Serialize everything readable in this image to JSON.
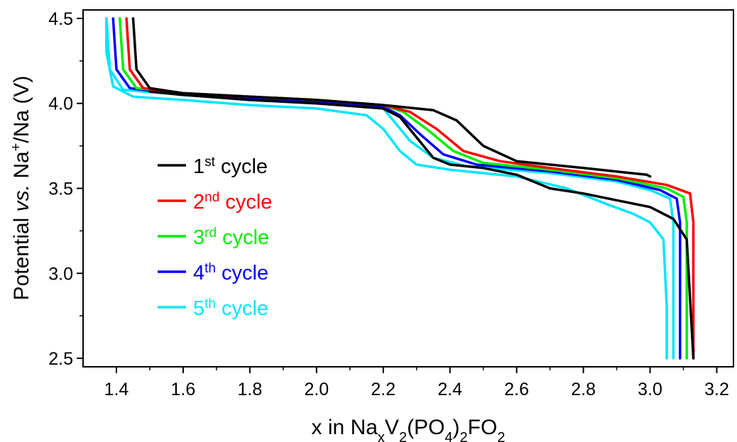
{
  "chart_data": {
    "type": "line",
    "xlabel": {
      "main": "x in Na",
      "sub1": "x",
      "mid1": "V",
      "sub2": "2",
      "mid2": "(PO",
      "sub3": "4",
      "mid3": ")",
      "sub4": "2",
      "mid4": "FO",
      "sub5": "2"
    },
    "ylabel": {
      "part1": "Potential ",
      "italic": "vs.",
      "part2": " Na",
      "sup": "+",
      "part3": "/Na (V)"
    },
    "xlim": [
      1.3,
      3.25
    ],
    "ylim": [
      2.45,
      4.55
    ],
    "x_ticks": [
      "1.4",
      "1.6",
      "1.8",
      "2.0",
      "2.2",
      "2.4",
      "2.6",
      "2.8",
      "3.0",
      "3.2"
    ],
    "y_ticks": [
      "2.5",
      "3.0",
      "3.5",
      "4.0",
      "4.5"
    ],
    "grid": false,
    "legend_position": "center-left",
    "series": [
      {
        "name": "1st cycle",
        "legend": {
          "num": "1",
          "sup": "st",
          "rest": " cycle"
        },
        "color": "#000000",
        "charge": [
          [
            1.45,
            4.5
          ],
          [
            1.46,
            4.2
          ],
          [
            1.5,
            4.09
          ],
          [
            1.6,
            4.06
          ],
          [
            1.8,
            4.04
          ],
          [
            2.0,
            4.02
          ],
          [
            2.2,
            3.99
          ],
          [
            2.35,
            3.96
          ],
          [
            2.42,
            3.9
          ],
          [
            2.5,
            3.75
          ],
          [
            2.6,
            3.66
          ],
          [
            2.8,
            3.62
          ],
          [
            2.99,
            3.58
          ],
          [
            3.0,
            3.57
          ]
        ],
        "discharge": [
          [
            3.13,
            2.5
          ],
          [
            3.12,
            2.85
          ],
          [
            3.11,
            3.2
          ],
          [
            3.07,
            3.32
          ],
          [
            3.0,
            3.39
          ],
          [
            2.9,
            3.43
          ],
          [
            2.8,
            3.47
          ],
          [
            2.7,
            3.5
          ],
          [
            2.6,
            3.58
          ],
          [
            2.5,
            3.62
          ],
          [
            2.4,
            3.64
          ],
          [
            2.35,
            3.68
          ],
          [
            2.3,
            3.8
          ],
          [
            2.25,
            3.92
          ],
          [
            2.2,
            3.97
          ],
          [
            2.0,
            4.0
          ],
          [
            1.8,
            4.02
          ],
          [
            1.6,
            4.05
          ],
          [
            1.5,
            4.07
          ]
        ]
      },
      {
        "name": "2nd cycle",
        "legend": {
          "num": "2",
          "sup": "nd",
          "rest": " cycle"
        },
        "color": "#ff0000",
        "charge": [
          [
            1.43,
            4.5
          ],
          [
            1.44,
            4.2
          ],
          [
            1.48,
            4.09
          ],
          [
            1.6,
            4.06
          ],
          [
            1.8,
            4.04
          ],
          [
            2.0,
            4.02
          ],
          [
            2.2,
            3.99
          ],
          [
            2.28,
            3.95
          ],
          [
            2.36,
            3.85
          ],
          [
            2.44,
            3.72
          ],
          [
            2.55,
            3.66
          ],
          [
            2.7,
            3.62
          ],
          [
            2.9,
            3.57
          ],
          [
            3.05,
            3.52
          ],
          [
            3.12,
            3.47
          ],
          [
            3.13,
            3.3
          ],
          [
            3.13,
            2.5
          ]
        ]
      },
      {
        "name": "3rd cycle",
        "legend": {
          "num": "3",
          "sup": "rd",
          "rest": " cycle"
        },
        "color": "#00ee00",
        "charge": [
          [
            1.41,
            4.5
          ],
          [
            1.42,
            4.2
          ],
          [
            1.46,
            4.09
          ],
          [
            1.6,
            4.06
          ],
          [
            1.8,
            4.04
          ],
          [
            2.0,
            4.02
          ],
          [
            2.2,
            3.99
          ],
          [
            2.26,
            3.95
          ],
          [
            2.33,
            3.85
          ],
          [
            2.41,
            3.72
          ],
          [
            2.5,
            3.65
          ],
          [
            2.7,
            3.61
          ],
          [
            2.9,
            3.56
          ],
          [
            3.05,
            3.5
          ],
          [
            3.1,
            3.45
          ],
          [
            3.11,
            3.3
          ],
          [
            3.11,
            2.5
          ]
        ]
      },
      {
        "name": "4th cycle",
        "legend": {
          "num": "4",
          "sup": "th",
          "rest": " cycle"
        },
        "color": "#0000ff",
        "charge": [
          [
            1.39,
            4.5
          ],
          [
            1.4,
            4.2
          ],
          [
            1.44,
            4.09
          ],
          [
            1.6,
            4.05
          ],
          [
            1.8,
            4.03
          ],
          [
            2.0,
            4.01
          ],
          [
            2.2,
            3.98
          ],
          [
            2.25,
            3.93
          ],
          [
            2.31,
            3.82
          ],
          [
            2.38,
            3.7
          ],
          [
            2.48,
            3.64
          ],
          [
            2.7,
            3.6
          ],
          [
            2.9,
            3.55
          ],
          [
            3.03,
            3.49
          ],
          [
            3.08,
            3.44
          ],
          [
            3.09,
            3.3
          ],
          [
            3.09,
            2.5
          ]
        ]
      },
      {
        "name": "5th cycle",
        "legend": {
          "num": "5",
          "sup": "th",
          "rest": " cycle"
        },
        "color": "#00e5ff",
        "charge": [
          [
            1.37,
            4.5
          ],
          [
            1.38,
            4.2
          ],
          [
            1.42,
            4.08
          ],
          [
            1.6,
            4.05
          ],
          [
            1.8,
            4.03
          ],
          [
            2.0,
            4.01
          ],
          [
            2.2,
            3.97
          ],
          [
            2.23,
            3.9
          ],
          [
            2.28,
            3.78
          ],
          [
            2.35,
            3.68
          ],
          [
            2.45,
            3.63
          ],
          [
            2.7,
            3.59
          ],
          [
            2.9,
            3.54
          ],
          [
            3.0,
            3.49
          ],
          [
            3.06,
            3.44
          ],
          [
            3.07,
            3.3
          ],
          [
            3.07,
            2.5
          ]
        ],
        "discharge": [
          [
            3.05,
            2.5
          ],
          [
            3.05,
            2.8
          ],
          [
            3.04,
            3.2
          ],
          [
            3.0,
            3.3
          ],
          [
            2.95,
            3.35
          ],
          [
            2.88,
            3.4
          ],
          [
            2.75,
            3.5
          ],
          [
            2.6,
            3.57
          ],
          [
            2.4,
            3.61
          ],
          [
            2.3,
            3.64
          ],
          [
            2.25,
            3.72
          ],
          [
            2.2,
            3.85
          ],
          [
            2.15,
            3.93
          ],
          [
            2.0,
            3.97
          ],
          [
            1.8,
            3.99
          ],
          [
            1.6,
            4.02
          ],
          [
            1.45,
            4.04
          ],
          [
            1.39,
            4.1
          ],
          [
            1.37,
            4.3
          ],
          [
            1.37,
            4.5
          ]
        ]
      }
    ]
  }
}
